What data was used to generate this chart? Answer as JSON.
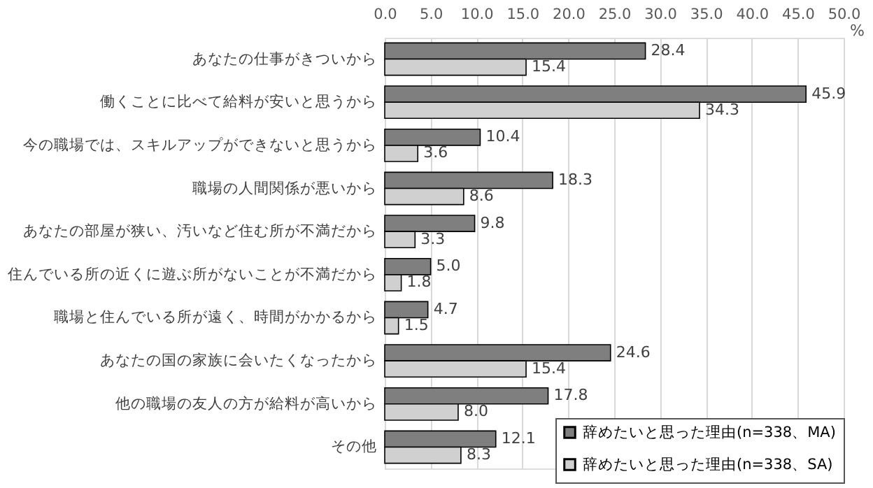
{
  "chart_data": {
    "type": "bar",
    "orientation": "horizontal",
    "xlabel": "%",
    "categories": [
      "あなたの仕事がきついから",
      "働くことに比べて給料が安いと思うから",
      "今の職場では、スキルアップができないと思うから",
      "職場の人間関係が悪いから",
      "あなたの部屋が狭い、汚いなど住む所が不満だから",
      "住んでいる所の近くに遊ぶ所がないことが不満だから",
      "職場と住んでいる所が遠く、時間がかかるから",
      "あなたの国の家族に会いたくなったから",
      "他の職場の友人の方が給料が高いから",
      "その他"
    ],
    "series": [
      {
        "name": "辞めたいと思った理由(n=338、MA)",
        "color": "#7f7f7f",
        "values": [
          28.4,
          45.9,
          10.4,
          18.3,
          9.8,
          5.0,
          4.7,
          24.6,
          17.8,
          12.1
        ],
        "value_labels": [
          "28.4",
          "45.9",
          "10.4",
          "18.3",
          "9.8",
          "5.0",
          "4.7",
          "24.6",
          "17.8",
          "12.1"
        ]
      },
      {
        "name": "辞めたいと思った理由(n=338、SA)",
        "color": "#d0d0d0",
        "values": [
          15.4,
          34.3,
          3.6,
          8.6,
          3.3,
          1.8,
          1.5,
          15.4,
          8.0,
          8.3
        ],
        "value_labels": [
          "15.4",
          "34.3",
          "3.6",
          "8.6",
          "3.3",
          "1.8",
          "1.5",
          "15.4",
          "8.0",
          "8.3"
        ]
      }
    ],
    "xlim": [
      0,
      50
    ],
    "xticks": [
      {
        "value": 0,
        "label": "0.0"
      },
      {
        "value": 5,
        "label": "5.0"
      },
      {
        "value": 10,
        "label": "10.0"
      },
      {
        "value": 15,
        "label": "15.0"
      },
      {
        "value": 20,
        "label": "20.0"
      },
      {
        "value": 25,
        "label": "25.0"
      },
      {
        "value": 30,
        "label": "30.0"
      },
      {
        "value": 35,
        "label": "35.0"
      },
      {
        "value": 40,
        "label": "40.0"
      },
      {
        "value": 45,
        "label": "45.0"
      },
      {
        "value": 50,
        "label": "50.0"
      }
    ],
    "grid": "x",
    "legend": "bottom right"
  }
}
